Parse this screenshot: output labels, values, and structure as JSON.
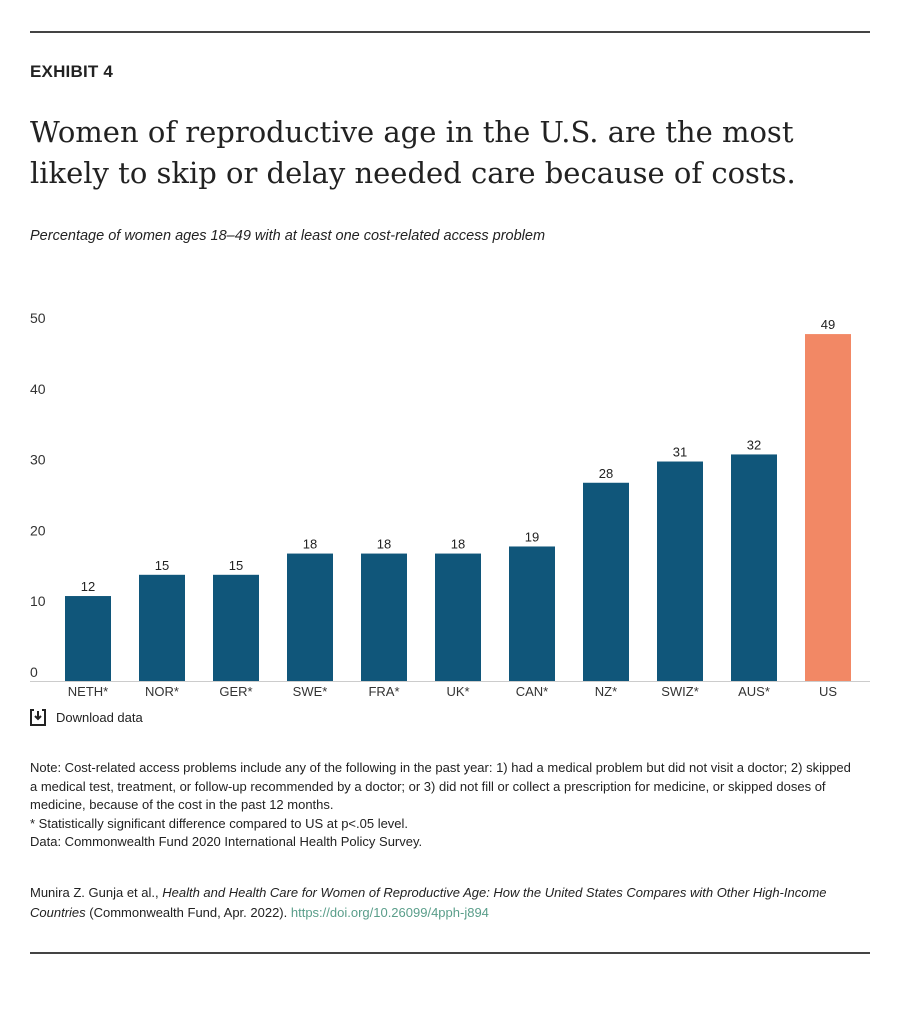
{
  "exhibit": "EXHIBIT 4",
  "title": "Women of reproductive age in the U.S. are the most likely to skip or delay needed care because of costs.",
  "subtitle": "Percentage of women ages 18–49 with at least one cost-related access problem",
  "chart_data": {
    "type": "bar",
    "categories": [
      "NETH*",
      "NOR*",
      "GER*",
      "SWE*",
      "FRA*",
      "UK*",
      "CAN*",
      "NZ*",
      "SWIZ*",
      "AUS*",
      "US"
    ],
    "values": [
      12,
      15,
      15,
      18,
      18,
      18,
      19,
      28,
      31,
      32,
      49
    ],
    "ylim": [
      0,
      50
    ],
    "yticks": [
      0,
      10,
      20,
      30,
      40,
      50
    ],
    "grid": false,
    "colors": {
      "default": "#10567a",
      "highlight": "#f28865"
    },
    "highlight": "US"
  },
  "download_label": "Download data",
  "note": [
    "Note: Cost-related access problems include any of the following in the past year: 1) had a medical problem but did not visit a doctor; 2) skipped a medical test, treatment, or follow-up recommended by a doctor; or 3) did not fill or collect a prescription for medicine, or skipped doses of medicine, because of the cost in the past 12 months.",
    "* Statistically significant difference compared to US at p<.05 level.",
    "Data: Commonwealth Fund 2020 International Health Policy Survey."
  ],
  "citation": {
    "authors": "Munira Z. Gunja et al., ",
    "work": "Health and Health Care for Women of Reproductive Age: How the United States Compares with Other High-Income Countries",
    "publisher": " (Commonwealth Fund, Apr. 2022). ",
    "link": "https://doi.org/10.26099/4pph-j894"
  }
}
